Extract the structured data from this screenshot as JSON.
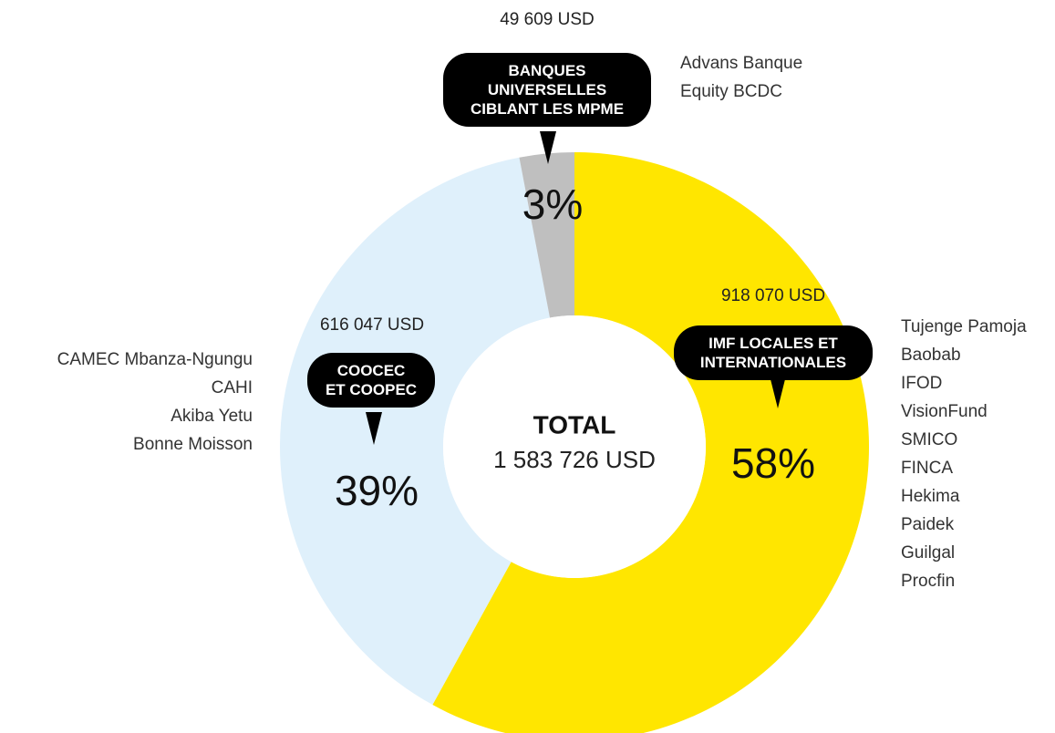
{
  "chart_data": {
    "type": "pie",
    "donut": true,
    "total_title": "TOTAL",
    "total_label": "1 583 726 USD",
    "categories": [
      "IMF LOCALES ET\nINTERNATIONALES",
      "COOCEC\nET COOPEC",
      "BANQUES\nUNIVERSELLES\nCIBLANT LES MPME"
    ],
    "values": [
      58,
      39,
      3
    ],
    "value_labels": [
      "58%",
      "39%",
      "3%"
    ],
    "amount_labels": [
      "918 070 USD",
      "616 047 USD",
      "49 609 USD"
    ],
    "colors": [
      "#ffe600",
      "#dff0fb",
      "#bfbfbf"
    ],
    "members": [
      [
        "Tujenge Pamoja",
        "Baobab",
        "IFOD",
        "VisionFund",
        "SMICO",
        "FINCA",
        "Hekima",
        "Paidek",
        "Guilgal",
        "Procfin"
      ],
      [
        "CAMEC Mbanza-Ngungu",
        "CAHI",
        "Akiba Yetu",
        "Bonne Moisson"
      ],
      [
        "Advans Banque",
        "Equity BCDC"
      ]
    ]
  }
}
